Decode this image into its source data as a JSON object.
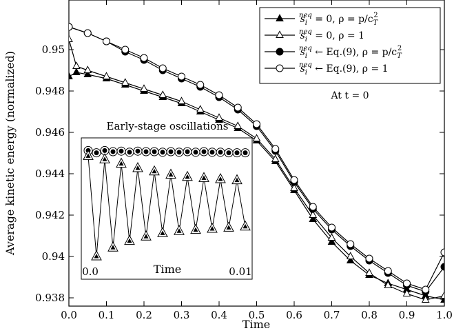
{
  "chart_data": {
    "type": "line",
    "xlabel": "Time",
    "ylabel": "Average kinetic energy (normalized)",
    "xlim": [
      0,
      1
    ],
    "ylim": [
      0.9376,
      0.9524
    ],
    "xticks": [
      "0.0",
      "0.1",
      "0.2",
      "0.3",
      "0.4",
      "0.5",
      "0.6",
      "0.7",
      "0.8",
      "0.9",
      "1.0"
    ],
    "yticks": [
      "0.938",
      "0.94",
      "0.942",
      "0.944",
      "0.946",
      "0.948",
      "0.95"
    ],
    "grid": false,
    "legend_position": "top-right",
    "legend_note": "At t = 0",
    "series": [
      {
        "name": "s_i^neq = 0, ρ = p/c_T²",
        "label_parts": [
          "s",
          "i",
          "neq",
          " = 0, ρ = p/c",
          "T",
          "2"
        ],
        "marker": "filled-triangle",
        "x": [
          0.0,
          0.02,
          0.05,
          0.1,
          0.15,
          0.2,
          0.25,
          0.3,
          0.35,
          0.4,
          0.45,
          0.5,
          0.55,
          0.6,
          0.65,
          0.7,
          0.75,
          0.8,
          0.85,
          0.9,
          0.95,
          1.0
        ],
        "y": [
          0.9487,
          0.9489,
          0.9488,
          0.9486,
          0.9483,
          0.948,
          0.9477,
          0.9474,
          0.947,
          0.9466,
          0.9462,
          0.9456,
          0.9446,
          0.9432,
          0.9418,
          0.9407,
          0.9398,
          0.9391,
          0.9387,
          0.9384,
          0.9381,
          0.9379
        ]
      },
      {
        "name": "s_i^neq = 0, ρ = 1",
        "label_parts": [
          "s",
          "i",
          "neq",
          " = 0, ρ = 1",
          "",
          ""
        ],
        "marker": "open-triangle",
        "x": [
          0.0,
          0.02,
          0.05,
          0.1,
          0.15,
          0.2,
          0.25,
          0.3,
          0.35,
          0.4,
          0.45,
          0.5,
          0.55,
          0.6,
          0.65,
          0.7,
          0.75,
          0.8,
          0.85,
          0.9,
          0.95,
          1.0
        ],
        "y": [
          0.9505,
          0.9492,
          0.949,
          0.9487,
          0.9484,
          0.9481,
          0.9478,
          0.9475,
          0.9471,
          0.9467,
          0.9463,
          0.9457,
          0.9447,
          0.9433,
          0.942,
          0.9409,
          0.94,
          0.9392,
          0.9386,
          0.9382,
          0.9379,
          0.9381
        ]
      },
      {
        "name": "s_i^neq ← Eq.(9), ρ = p/c_T²",
        "label_parts": [
          "s",
          "i",
          "neq",
          " ← Eq.(9), ρ = p/c",
          "T",
          "2"
        ],
        "marker": "filled-circle",
        "x": [
          0.0,
          0.05,
          0.1,
          0.15,
          0.2,
          0.25,
          0.3,
          0.35,
          0.4,
          0.45,
          0.5,
          0.55,
          0.6,
          0.65,
          0.7,
          0.75,
          0.8,
          0.85,
          0.9,
          0.95,
          1.0
        ],
        "y": [
          0.9511,
          0.9508,
          0.9504,
          0.9499,
          0.9495,
          0.949,
          0.9486,
          0.9482,
          0.9477,
          0.9471,
          0.9463,
          0.9451,
          0.9436,
          0.9423,
          0.9413,
          0.9405,
          0.9398,
          0.9392,
          0.9386,
          0.9383,
          0.9395
        ]
      },
      {
        "name": "s_i^neq ← Eq.(9), ρ = 1",
        "label_parts": [
          "s",
          "i",
          "neq",
          " ← Eq.(9), ρ = 1",
          "",
          ""
        ],
        "marker": "open-circle",
        "x": [
          0.0,
          0.05,
          0.1,
          0.15,
          0.2,
          0.25,
          0.3,
          0.35,
          0.4,
          0.45,
          0.5,
          0.55,
          0.6,
          0.65,
          0.7,
          0.75,
          0.8,
          0.85,
          0.9,
          0.95,
          1.0
        ],
        "y": [
          0.9511,
          0.9508,
          0.9504,
          0.95,
          0.9496,
          0.9491,
          0.9487,
          0.9483,
          0.9478,
          0.9472,
          0.9464,
          0.9452,
          0.9437,
          0.9424,
          0.9414,
          0.9406,
          0.9399,
          0.9393,
          0.9387,
          0.9384,
          0.9402
        ]
      }
    ],
    "inset": {
      "title": "Early-stage oscillations",
      "xlabel": "Time",
      "xticks": [
        "0.0",
        "0.01"
      ],
      "series": [
        {
          "marker": "circle",
          "x": [
            0.0,
            0.0005,
            0.001,
            0.0015,
            0.002,
            0.0025,
            0.003,
            0.0035,
            0.004,
            0.0045,
            0.005,
            0.0055,
            0.006,
            0.0065,
            0.007,
            0.0075,
            0.008,
            0.0085,
            0.009,
            0.0095
          ],
          "y": [
            0.96,
            0.94,
            0.96,
            0.95,
            0.955,
            0.945,
            0.955,
            0.95,
            0.95,
            0.945,
            0.95,
            0.945,
            0.95,
            0.945,
            0.95,
            0.945,
            0.945,
            0.94,
            0.94,
            0.94
          ]
        },
        {
          "marker": "triangle",
          "x": [
            0.0,
            0.0005,
            0.001,
            0.0015,
            0.002,
            0.0025,
            0.003,
            0.0035,
            0.004,
            0.0045,
            0.005,
            0.0055,
            0.006,
            0.0065,
            0.007,
            0.0075,
            0.008,
            0.0085,
            0.009,
            0.0095
          ],
          "y": [
            0.91,
            0.0,
            0.88,
            0.08,
            0.84,
            0.14,
            0.8,
            0.18,
            0.77,
            0.21,
            0.74,
            0.23,
            0.72,
            0.24,
            0.71,
            0.25,
            0.7,
            0.26,
            0.69,
            0.27
          ]
        }
      ]
    }
  }
}
